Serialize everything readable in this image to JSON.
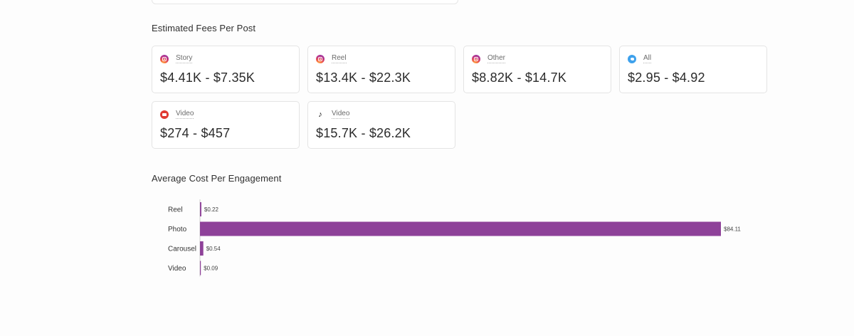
{
  "fees": {
    "title": "Estimated Fees Per Post",
    "cards": [
      {
        "platform": "instagram",
        "icon": "instagram-icon",
        "type": "Story",
        "range": "$4.41K - $7.35K"
      },
      {
        "platform": "instagram",
        "icon": "instagram-icon",
        "type": "Reel",
        "range": "$13.4K - $22.3K"
      },
      {
        "platform": "instagram",
        "icon": "instagram-icon",
        "type": "Other",
        "range": "$8.82K - $14.7K"
      },
      {
        "platform": "twitter",
        "icon": "twitter-icon",
        "type": "All",
        "range": "$2.95 - $4.92"
      },
      {
        "platform": "youtube",
        "icon": "youtube-icon",
        "type": "Video",
        "range": "$274 - $457"
      },
      {
        "platform": "tiktok",
        "icon": "tiktok-icon",
        "type": "Video",
        "range": "$15.7K - $26.2K"
      }
    ]
  },
  "engagement": {
    "title": "Average Cost Per Engagement"
  },
  "colors": {
    "bar": "#8e4199",
    "instagram": "#c13584",
    "twitter": "#3ea1ec",
    "youtube": "#e03a32",
    "tiktok": "#111111"
  },
  "chart_data": {
    "type": "bar",
    "orientation": "horizontal",
    "categories": [
      "Reel",
      "Photo",
      "Carousel",
      "Video"
    ],
    "values": [
      0.22,
      84.11,
      0.54,
      0.09
    ],
    "value_labels": [
      "$0.22",
      "$84.11",
      "$0.54",
      "$0.09"
    ],
    "title": "",
    "xlabel": "",
    "ylabel": "",
    "xlim": [
      0,
      84.11
    ],
    "grid": false,
    "legend": "none"
  }
}
